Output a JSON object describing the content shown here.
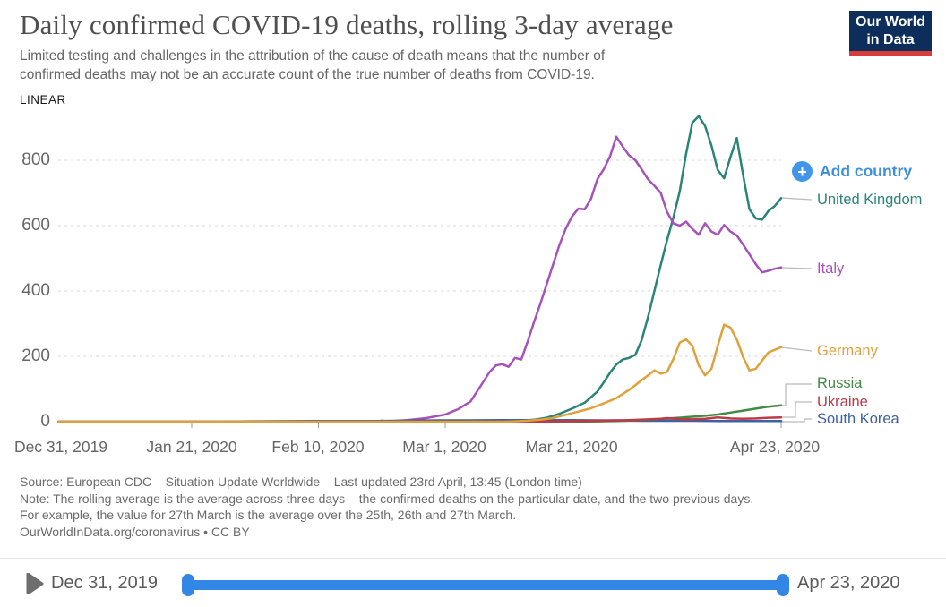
{
  "header": {
    "title": "Daily confirmed COVID-19 deaths, rolling 3-day average",
    "subtitle_line1": "Limited testing and challenges in the attribution of the cause of death means that the number of",
    "subtitle_line2": "confirmed deaths may not be an accurate count of the true number of deaths from COVID-19.",
    "logo_line1": "Our World",
    "logo_line2": "in Data"
  },
  "chart": {
    "scale_toggle": "LINEAR",
    "add_country_label": "Add country"
  },
  "ui_colors": {
    "accent_blue": "#3e8ede",
    "add_button_blue": "#4196e8",
    "slider_blue": "#3287e6",
    "logo_navy": "#0d2e5b",
    "logo_red": "#d73c3c"
  },
  "chart_data": {
    "type": "line",
    "title": "Daily confirmed COVID-19 deaths, rolling 3-day average",
    "x_axis": "date",
    "x_tick_labels": [
      "Dec 31, 2019",
      "Jan 21, 2020",
      "Feb 10, 2020",
      "Mar 1, 2020",
      "Mar 21, 2020",
      "Apr 23, 2020"
    ],
    "x_tick_days": [
      0,
      21,
      41,
      61,
      81,
      114
    ],
    "x_range_days": [
      0,
      114
    ],
    "yticks": [
      800,
      600,
      400,
      200,
      0
    ],
    "ytick_labels": [
      "800",
      "600",
      "400",
      "200",
      "0"
    ],
    "ylim": [
      0,
      960
    ],
    "grid": "horizontal-dashed",
    "legend_position": "right",
    "draw_order": [
      0,
      1,
      5,
      3,
      4,
      2
    ],
    "series": [
      {
        "name": "United Kingdom",
        "color": "#2a847a",
        "points": [
          [
            0,
            0
          ],
          [
            30,
            0
          ],
          [
            55,
            0
          ],
          [
            65,
            0
          ],
          [
            70,
            1
          ],
          [
            73,
            3
          ],
          [
            75,
            6
          ],
          [
            77,
            12
          ],
          [
            79,
            24
          ],
          [
            81,
            40
          ],
          [
            83,
            58
          ],
          [
            85,
            92
          ],
          [
            86,
            120
          ],
          [
            87,
            150
          ],
          [
            88,
            175
          ],
          [
            89,
            190
          ],
          [
            90,
            195
          ],
          [
            91,
            205
          ],
          [
            92,
            250
          ],
          [
            93,
            320
          ],
          [
            94,
            400
          ],
          [
            95,
            480
          ],
          [
            96,
            555
          ],
          [
            97,
            625
          ],
          [
            98,
            705
          ],
          [
            99,
            820
          ],
          [
            100,
            915
          ],
          [
            101,
            935
          ],
          [
            102,
            905
          ],
          [
            103,
            845
          ],
          [
            104,
            770
          ],
          [
            105,
            745
          ],
          [
            106,
            810
          ],
          [
            107,
            868
          ],
          [
            108,
            755
          ],
          [
            109,
            650
          ],
          [
            110,
            622
          ],
          [
            111,
            618
          ],
          [
            112,
            645
          ],
          [
            113,
            660
          ],
          [
            114,
            684
          ]
        ]
      },
      {
        "name": "Italy",
        "color": "#a652ba",
        "points": [
          [
            0,
            0
          ],
          [
            20,
            0
          ],
          [
            40,
            0
          ],
          [
            50,
            0
          ],
          [
            51,
            3
          ],
          [
            52,
            1
          ],
          [
            55,
            5
          ],
          [
            58,
            11
          ],
          [
            61,
            22
          ],
          [
            63,
            38
          ],
          [
            65,
            62
          ],
          [
            66,
            92
          ],
          [
            67,
            122
          ],
          [
            68,
            152
          ],
          [
            69,
            172
          ],
          [
            70,
            176
          ],
          [
            71,
            168
          ],
          [
            72,
            195
          ],
          [
            73,
            190
          ],
          [
            74,
            245
          ],
          [
            75,
            305
          ],
          [
            76,
            360
          ],
          [
            77,
            420
          ],
          [
            78,
            480
          ],
          [
            79,
            540
          ],
          [
            80,
            590
          ],
          [
            81,
            628
          ],
          [
            82,
            652
          ],
          [
            83,
            650
          ],
          [
            84,
            682
          ],
          [
            85,
            742
          ],
          [
            86,
            772
          ],
          [
            87,
            812
          ],
          [
            88,
            872
          ],
          [
            89,
            842
          ],
          [
            90,
            815
          ],
          [
            91,
            800
          ],
          [
            92,
            772
          ],
          [
            93,
            742
          ],
          [
            94,
            722
          ],
          [
            95,
            700
          ],
          [
            96,
            642
          ],
          [
            97,
            607
          ],
          [
            98,
            600
          ],
          [
            99,
            612
          ],
          [
            100,
            590
          ],
          [
            101,
            572
          ],
          [
            102,
            607
          ],
          [
            103,
            582
          ],
          [
            104,
            572
          ],
          [
            105,
            602
          ],
          [
            106,
            582
          ],
          [
            107,
            570
          ],
          [
            108,
            542
          ],
          [
            109,
            512
          ],
          [
            110,
            482
          ],
          [
            111,
            457
          ],
          [
            112,
            462
          ],
          [
            113,
            468
          ],
          [
            114,
            472
          ]
        ]
      },
      {
        "name": "Germany",
        "color": "#dfa13c",
        "points": [
          [
            0,
            0
          ],
          [
            40,
            0
          ],
          [
            60,
            0
          ],
          [
            70,
            0
          ],
          [
            72,
            1
          ],
          [
            74,
            3
          ],
          [
            76,
            6
          ],
          [
            78,
            11
          ],
          [
            80,
            21
          ],
          [
            82,
            31
          ],
          [
            84,
            41
          ],
          [
            86,
            56
          ],
          [
            88,
            72
          ],
          [
            90,
            97
          ],
          [
            91,
            112
          ],
          [
            92,
            127
          ],
          [
            93,
            142
          ],
          [
            94,
            157
          ],
          [
            95,
            147
          ],
          [
            96,
            152
          ],
          [
            97,
            192
          ],
          [
            98,
            242
          ],
          [
            99,
            252
          ],
          [
            100,
            232
          ],
          [
            101,
            172
          ],
          [
            102,
            142
          ],
          [
            103,
            162
          ],
          [
            104,
            232
          ],
          [
            105,
            297
          ],
          [
            106,
            288
          ],
          [
            107,
            252
          ],
          [
            108,
            198
          ],
          [
            109,
            157
          ],
          [
            110,
            162
          ],
          [
            111,
            187
          ],
          [
            112,
            212
          ],
          [
            114,
            228
          ]
        ]
      },
      {
        "name": "Russia",
        "color": "#418a44",
        "points": [
          [
            0,
            0
          ],
          [
            40,
            0
          ],
          [
            70,
            0
          ],
          [
            80,
            0
          ],
          [
            85,
            1
          ],
          [
            88,
            2
          ],
          [
            91,
            4
          ],
          [
            94,
            7
          ],
          [
            97,
            11
          ],
          [
            100,
            15
          ],
          [
            102,
            18
          ],
          [
            104,
            22
          ],
          [
            106,
            28
          ],
          [
            108,
            34
          ],
          [
            110,
            40
          ],
          [
            112,
            46
          ],
          [
            114,
            50
          ]
        ]
      },
      {
        "name": "Ukraine",
        "color": "#bc3b46",
        "points": [
          [
            0,
            0
          ],
          [
            40,
            0
          ],
          [
            70,
            0
          ],
          [
            78,
            1
          ],
          [
            82,
            2
          ],
          [
            86,
            3
          ],
          [
            90,
            5
          ],
          [
            93,
            7
          ],
          [
            95,
            9
          ],
          [
            96,
            11
          ],
          [
            98,
            8
          ],
          [
            100,
            7
          ],
          [
            102,
            9
          ],
          [
            104,
            13
          ],
          [
            106,
            10
          ],
          [
            108,
            9
          ],
          [
            110,
            10
          ],
          [
            112,
            12
          ],
          [
            114,
            13
          ]
        ]
      },
      {
        "name": "South Korea",
        "color": "#3d61a2",
        "points": [
          [
            0,
            0
          ],
          [
            25,
            0
          ],
          [
            30,
            1
          ],
          [
            40,
            2
          ],
          [
            50,
            2
          ],
          [
            55,
            3
          ],
          [
            60,
            4
          ],
          [
            65,
            4
          ],
          [
            70,
            5
          ],
          [
            75,
            5
          ],
          [
            80,
            5
          ],
          [
            85,
            4
          ],
          [
            88,
            4
          ],
          [
            92,
            3
          ],
          [
            96,
            3
          ],
          [
            100,
            3
          ],
          [
            104,
            2
          ],
          [
            108,
            2
          ],
          [
            114,
            2
          ]
        ]
      }
    ]
  },
  "footer": {
    "line1": "Source: European CDC – Situation Update Worldwide – Last updated 23rd April, 13:45 (London time)",
    "line2": "Note: The rolling average is the average across three days – the confirmed deaths on the particular date, and the two previous days.",
    "line3": "For example, the value for 27th March is the average over the 25th, 26th and 27th March.",
    "line4": "OurWorldInData.org/coronavirus • CC BY"
  },
  "timeline": {
    "start_label": "Dec 31, 2019",
    "end_label": "Apr 23, 2020"
  }
}
